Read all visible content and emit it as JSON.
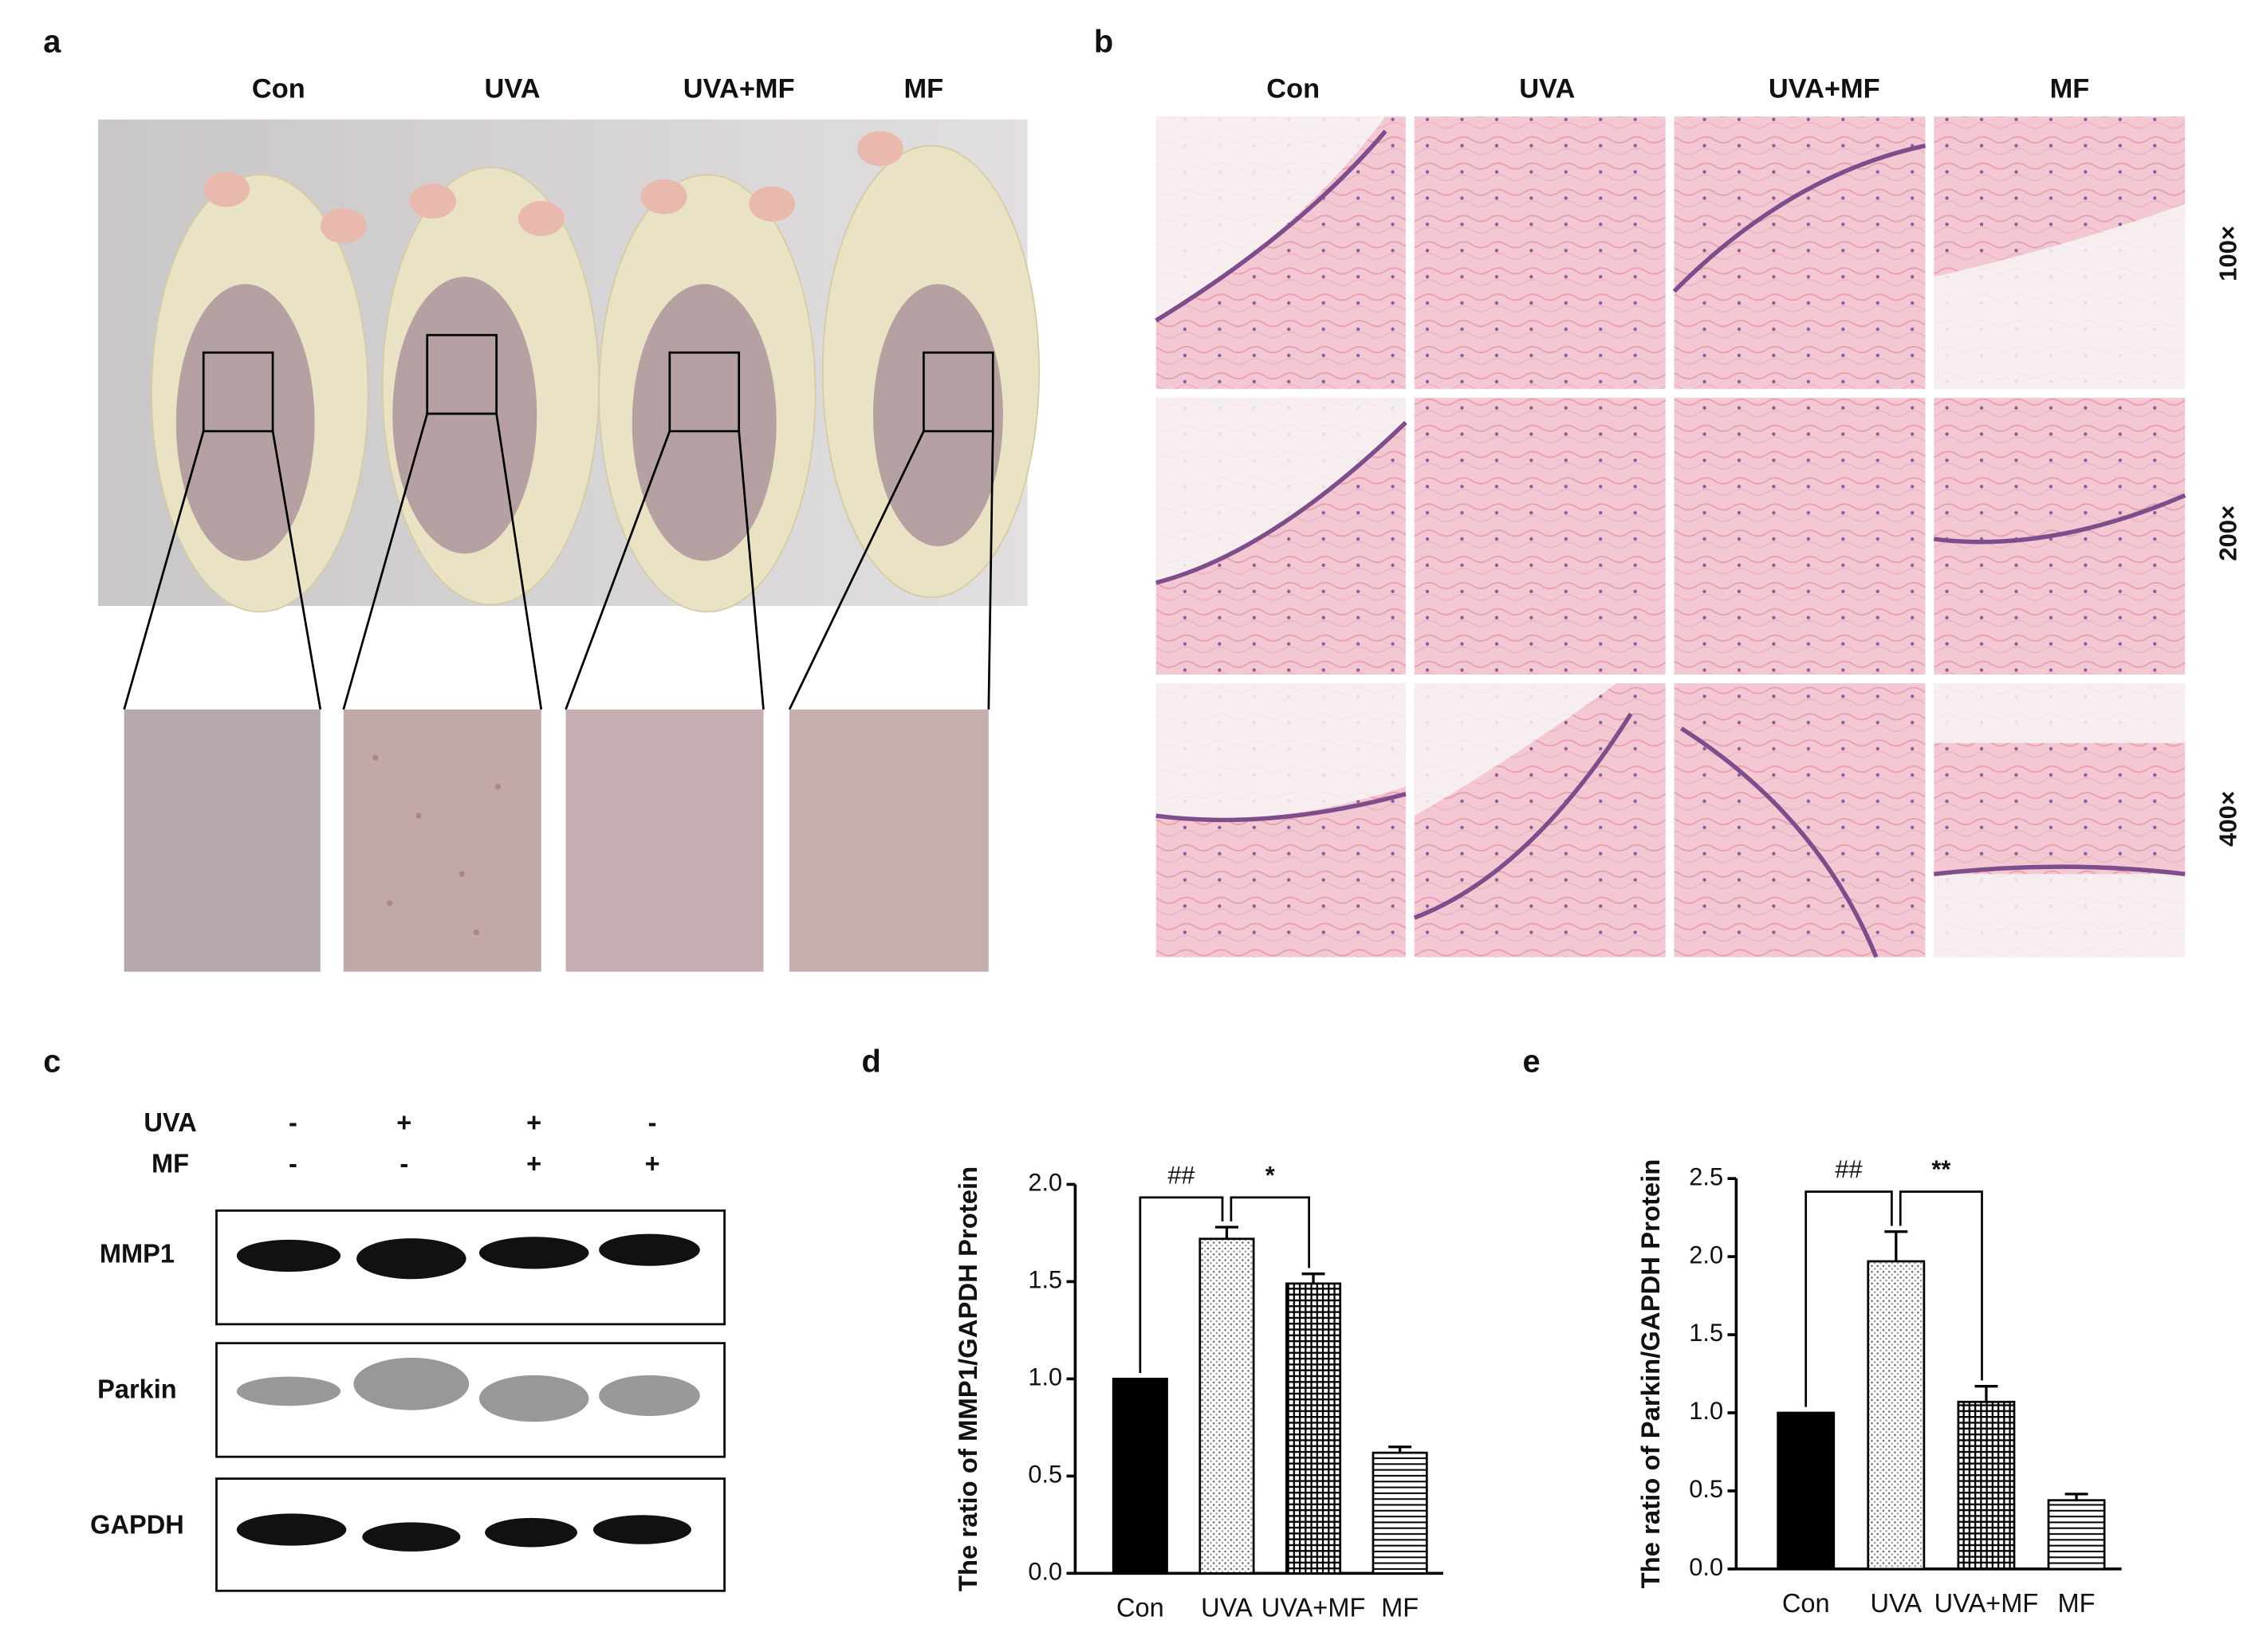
{
  "panels": {
    "a": {
      "label": "a",
      "groups": [
        "Con",
        "UVA",
        "UVA+MF",
        "MF"
      ]
    },
    "b": {
      "label": "b",
      "groups": [
        "Con",
        "UVA",
        "UVA+MF",
        "MF"
      ],
      "magnifications": [
        "100×",
        "200×",
        "400×"
      ]
    },
    "c": {
      "label": "c",
      "conditions": [
        {
          "name": "UVA",
          "marks": [
            "-",
            "+",
            "+",
            "-"
          ]
        },
        {
          "name": "MF",
          "marks": [
            "-",
            "-",
            "+",
            "+"
          ]
        }
      ],
      "bands": [
        "MMP1",
        "Parkin",
        "GAPDH"
      ]
    }
  },
  "chart_data": [
    {
      "type": "bar",
      "panel_label": "d",
      "y_label": "The ratio of MMP1/GAPDH Protein",
      "categories": [
        "Con",
        "UVA",
        "UVA+MF",
        "MF"
      ],
      "values": [
        1.0,
        1.72,
        1.49,
        0.62
      ],
      "errors": [
        0,
        0.06,
        0.05,
        0.03
      ],
      "patterns": [
        "solid",
        "dots",
        "grid",
        "hlines"
      ],
      "color": "#000000",
      "annotations": [
        "##",
        "*"
      ],
      "ylim": [
        0,
        2.0
      ],
      "yticks": [
        {
          "value": 0,
          "label": "0.0"
        },
        0.5,
        {
          "value": 1,
          "label": "1.0"
        },
        1.5,
        {
          "value": 2,
          "label": "2.0"
        }
      ]
    },
    {
      "type": "bar",
      "panel_label": "e",
      "y_label": "The ratio of Parkin/GAPDH Protein",
      "categories": [
        "Con",
        "UVA",
        "UVA+MF",
        "MF"
      ],
      "values": [
        1.0,
        1.97,
        1.07,
        0.44
      ],
      "errors": [
        0,
        0.19,
        0.1,
        0.04
      ],
      "patterns": [
        "solid",
        "dots",
        "grid",
        "hlines"
      ],
      "color": "#000000",
      "annotations": [
        "##",
        "**"
      ],
      "ylim": [
        0,
        2.5
      ],
      "yticks": [
        {
          "value": 0,
          "label": "0.0"
        },
        0.5,
        {
          "value": 1,
          "label": "1.0"
        },
        1.5,
        {
          "value": 2,
          "label": "2.0"
        },
        2.5
      ]
    }
  ]
}
